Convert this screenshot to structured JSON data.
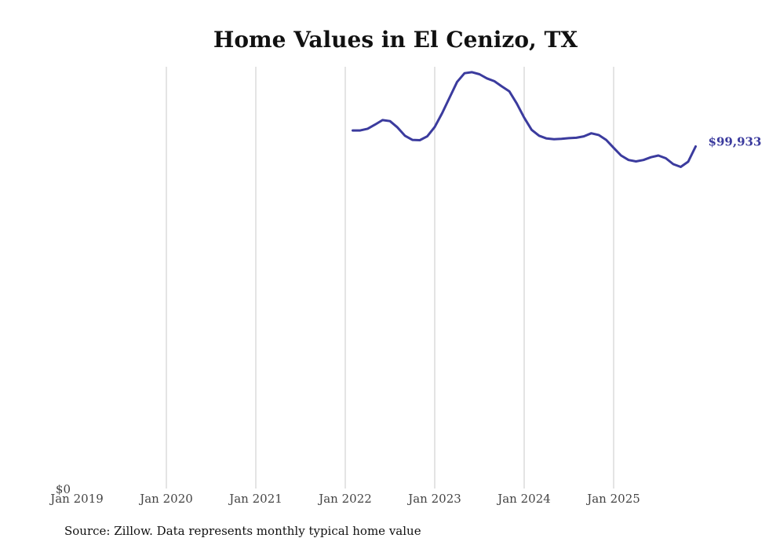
{
  "chart_data": {
    "type": "line",
    "title": "Home Values in El Cenizo, TX",
    "xlabel": "",
    "ylabel": "",
    "x_ticks": [
      {
        "label": "Jan 2019",
        "value": 2019.0
      },
      {
        "label": "Jan 2020",
        "value": 2020.0
      },
      {
        "label": "Jan 2021",
        "value": 2021.0
      },
      {
        "label": "Jan 2022",
        "value": 2022.0
      },
      {
        "label": "Jan 2023",
        "value": 2023.0
      },
      {
        "label": "Jan 2024",
        "value": 2024.0
      },
      {
        "label": "Jan 2025",
        "value": 2025.0
      }
    ],
    "xlim": [
      2019.0,
      2026.0
    ],
    "y_ticks": [
      {
        "label": "$0",
        "value": 0
      }
    ],
    "ylim": [
      0,
      121500
    ],
    "grid": {
      "vertical": true,
      "horizontal": false
    },
    "color": "#3b3b9e",
    "end_label": "$99,933",
    "series": [
      {
        "name": "Typical home value",
        "x": [
          2022.083,
          2022.167,
          2022.25,
          2022.333,
          2022.417,
          2022.5,
          2022.583,
          2022.667,
          2022.75,
          2022.833,
          2022.917,
          2023.0,
          2023.083,
          2023.167,
          2023.25,
          2023.333,
          2023.417,
          2023.5,
          2023.583,
          2023.667,
          2023.75,
          2023.833,
          2023.917,
          2024.0,
          2024.083,
          2024.167,
          2024.25,
          2024.333,
          2024.417,
          2024.5,
          2024.583,
          2024.667,
          2024.75,
          2024.833,
          2024.917,
          2025.0,
          2025.083,
          2025.167,
          2025.25,
          2025.333,
          2025.417,
          2025.5,
          2025.583,
          2025.667,
          2025.75,
          2025.833,
          2025.917
        ],
        "values": [
          104500,
          104500,
          105000,
          106200,
          107500,
          107200,
          105400,
          103000,
          101800,
          101700,
          102800,
          105500,
          109500,
          114000,
          118500,
          121000,
          121300,
          120700,
          119500,
          118700,
          117200,
          115800,
          112300,
          108200,
          104700,
          103000,
          102200,
          102000,
          102100,
          102300,
          102400,
          102800,
          103700,
          103200,
          101800,
          99500,
          97300,
          96000,
          95600,
          96000,
          96800,
          97300,
          96500,
          94800,
          94000,
          95500,
          99900
        ]
      }
    ]
  },
  "footer": {
    "source": "Source: Zillow. Data represents monthly typical home value"
  }
}
